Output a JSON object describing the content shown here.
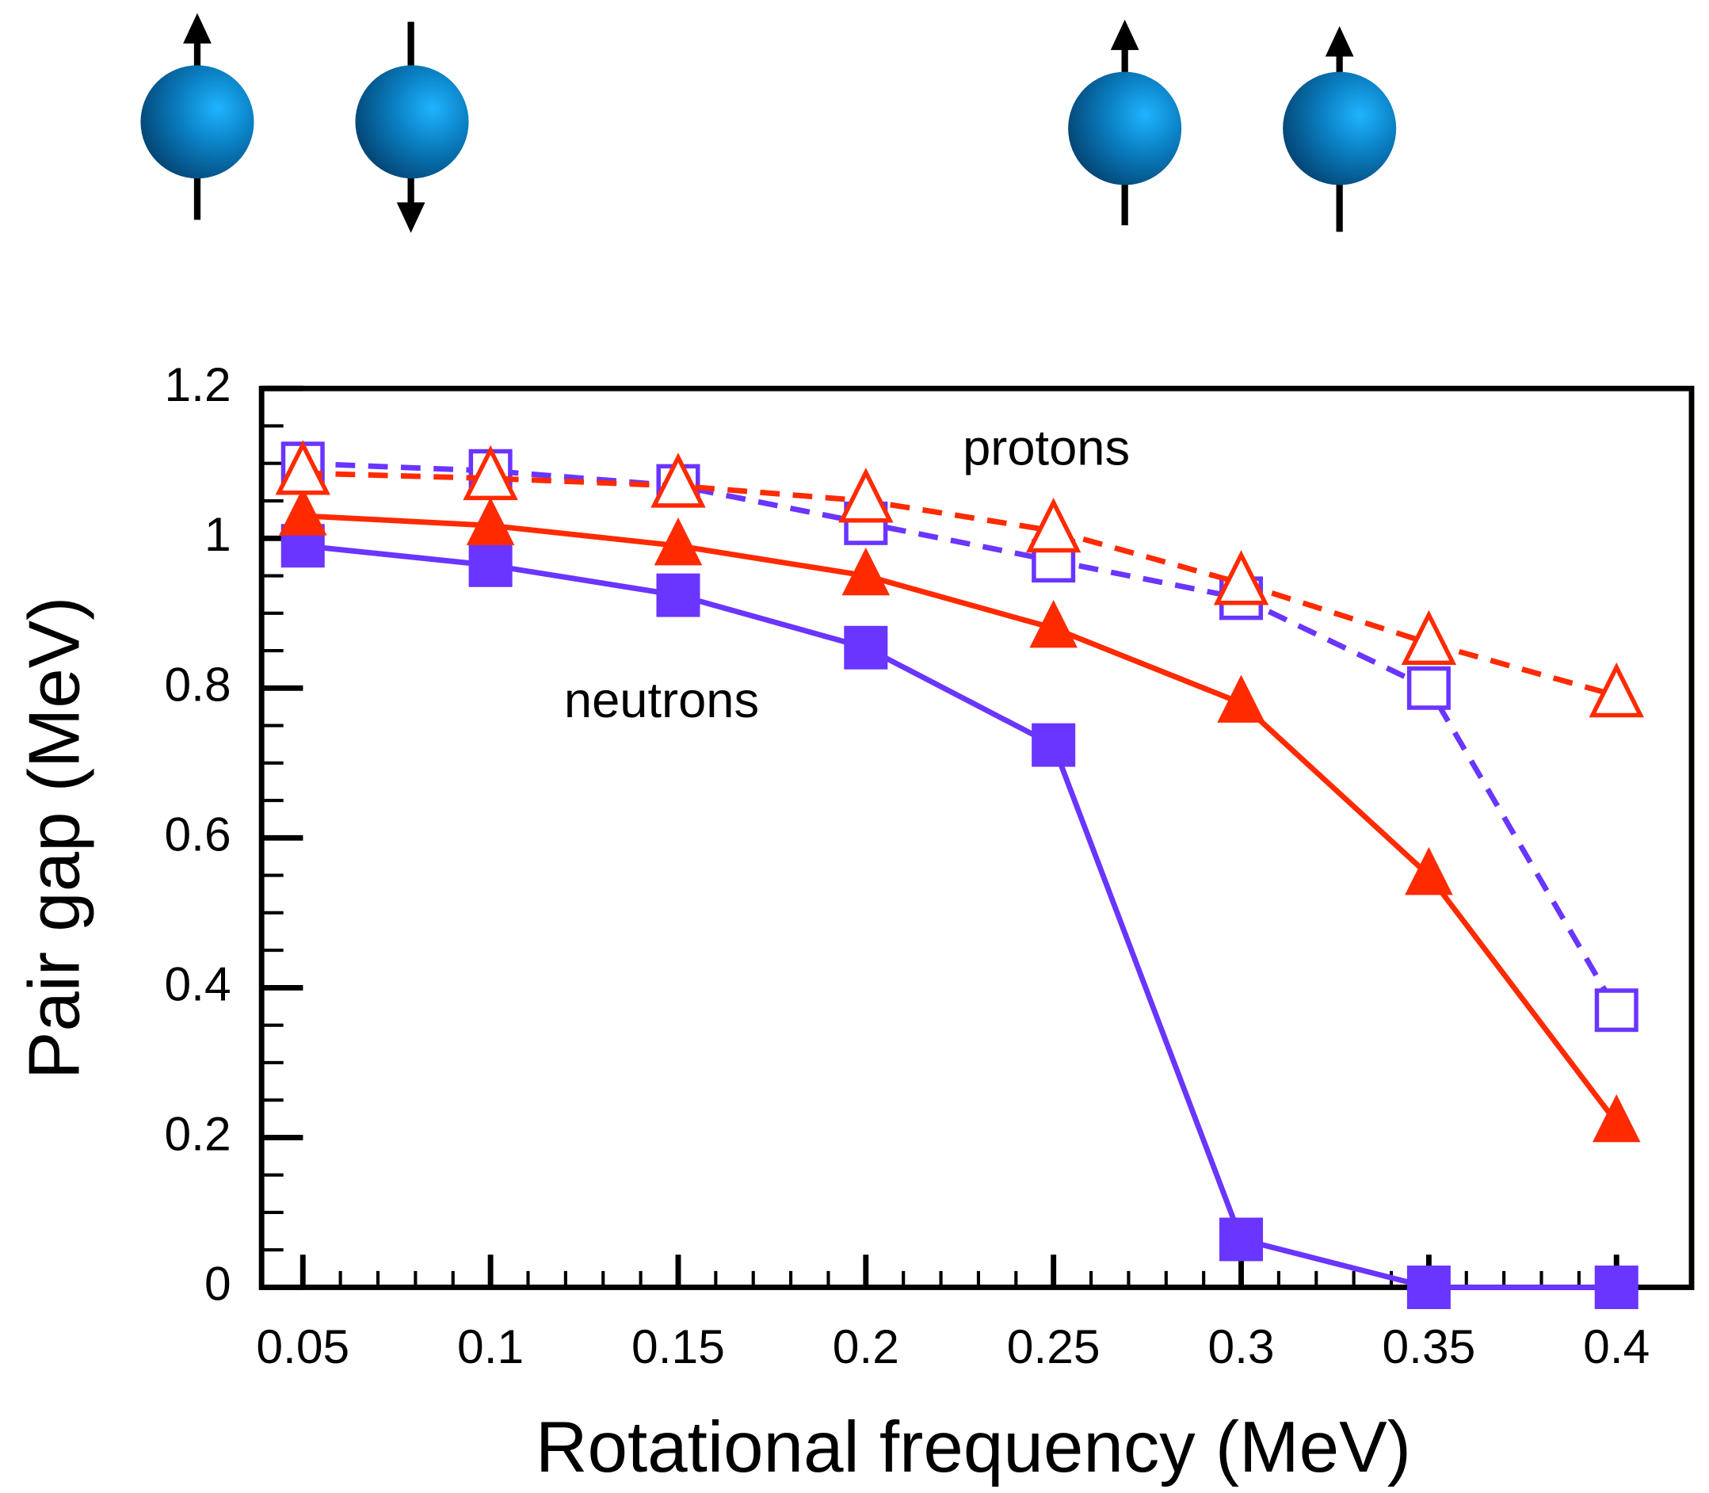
{
  "chart_data": {
    "type": "line",
    "x_label": "Rotational frequency (MeV)",
    "y_label": "Pair gap (MeV)",
    "x": [
      0.05,
      0.1,
      0.15,
      0.2,
      0.25,
      0.3,
      0.35,
      0.4
    ],
    "xlim": [
      0.039,
      0.42
    ],
    "ylim": [
      0,
      1.2
    ],
    "xticks": [
      0.05,
      0.1,
      0.15,
      0.2,
      0.25,
      0.3,
      0.35,
      0.4
    ],
    "yticks": [
      0,
      0.2,
      0.4,
      0.6,
      0.8,
      1,
      1.2
    ],
    "grid": false,
    "series": [
      {
        "color": "#6a35ff",
        "marker": "square",
        "filled": true,
        "dashed": false,
        "values": [
          0.99,
          0.964,
          0.924,
          0.854,
          0.724,
          0.064,
          0,
          0
        ]
      },
      {
        "color": "#ff2a00",
        "marker": "triangle",
        "filled": true,
        "dashed": false,
        "values": [
          1.03,
          1.017,
          0.99,
          0.95,
          0.88,
          0.78,
          0.55,
          0.22
        ]
      },
      {
        "color": "#6a35ff",
        "marker": "square",
        "filled": false,
        "dashed": true,
        "values": [
          1.1,
          1.09,
          1.07,
          1.02,
          0.97,
          0.92,
          0.8,
          0.37
        ]
      },
      {
        "color": "#ff2a00",
        "marker": "triangle",
        "filled": false,
        "dashed": true,
        "values": [
          1.087,
          1.08,
          1.07,
          1.05,
          1.01,
          0.94,
          0.86,
          0.79
        ]
      }
    ],
    "annotations": [
      "protons",
      "neutrons"
    ]
  }
}
